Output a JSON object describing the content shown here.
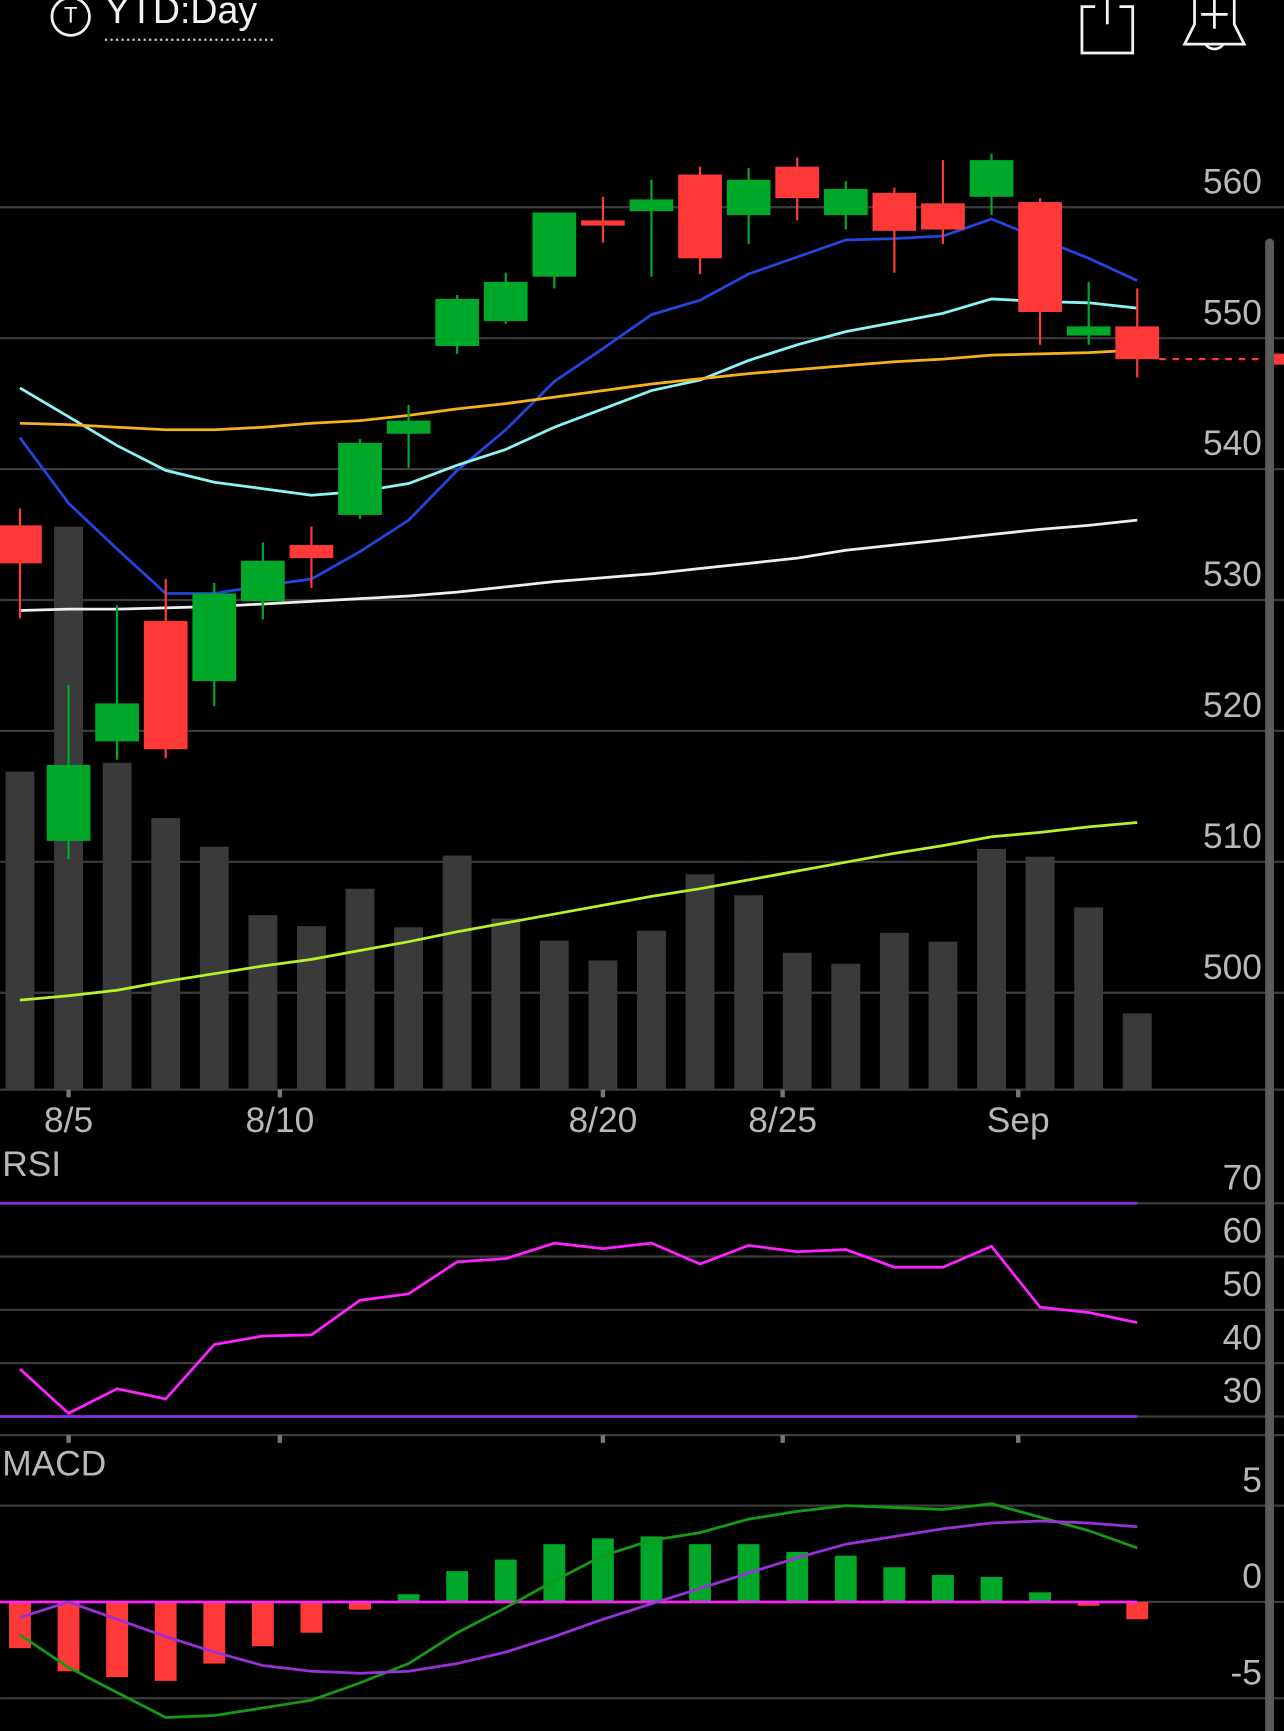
{
  "header": {
    "icon": "T",
    "title": "YTD:Day"
  },
  "chart_data": [
    {
      "type": "candlestick",
      "xlim": [
        -0.41,
        26.02
      ],
      "xticks": [
        {
          "value": 1,
          "label": "8/5"
        },
        {
          "value": 5.35,
          "label": "8/10"
        },
        {
          "value": 12,
          "label": "8/20"
        },
        {
          "value": 15.7,
          "label": "8/25"
        },
        {
          "value": 20.55,
          "label": "Sep"
        }
      ],
      "ylim": [
        492.6,
        567.4
      ],
      "yticks": [
        500,
        510,
        520,
        530,
        540,
        550,
        560
      ],
      "grid": true,
      "up_color": "#00a82a",
      "down_color": "#ff3838",
      "open": [
        535.7,
        511.6,
        519.2,
        528.4,
        523.8,
        529.9,
        534.2,
        536.5,
        542.7,
        549.4,
        551.3,
        554.7,
        559.0,
        559.7,
        562.5,
        559.4,
        563.1,
        559.4,
        561.1,
        560.3,
        560.8,
        560.4,
        550.2,
        550.9
      ],
      "high": [
        537.0,
        523.5,
        529.6,
        531.6,
        531.3,
        534.4,
        535.6,
        542.3,
        544.9,
        553.3,
        555.0,
        559.6,
        560.8,
        562.1,
        563.1,
        563.0,
        563.8,
        562.0,
        561.5,
        563.6,
        564.1,
        560.7,
        554.3,
        553.8
      ],
      "low": [
        528.6,
        510.2,
        517.8,
        517.9,
        521.9,
        528.5,
        530.9,
        536.2,
        540.1,
        548.8,
        551.1,
        553.8,
        557.3,
        554.7,
        554.9,
        557.2,
        559.0,
        558.3,
        555.0,
        557.2,
        559.4,
        549.5,
        549.5,
        547.0
      ],
      "close": [
        532.8,
        517.4,
        522.1,
        518.6,
        530.5,
        533.0,
        533.2,
        542.0,
        543.7,
        553.0,
        554.3,
        559.6,
        558.6,
        560.6,
        556.1,
        562.1,
        560.7,
        561.4,
        558.2,
        558.3,
        563.6,
        552.0,
        550.9,
        548.4
      ],
      "lines": [
        {
          "color": "#2345e0",
          "values": [
            542.4,
            537.4,
            533.9,
            530.5,
            530.5,
            531.1,
            531.6,
            533.7,
            536.1,
            539.9,
            543.0,
            546.7,
            549.2,
            551.8,
            552.9,
            554.9,
            556.2,
            557.5,
            557.6,
            557.8,
            559.1,
            557.6,
            556.1,
            554.4
          ]
        },
        {
          "color": "#8af5f5",
          "values": [
            546.2,
            544.0,
            541.8,
            539.9,
            539.0,
            538.5,
            538.0,
            538.3,
            538.9,
            540.3,
            541.5,
            543.2,
            544.6,
            546.0,
            546.8,
            548.3,
            549.5,
            550.5,
            551.2,
            551.9,
            553.0,
            552.8,
            552.7,
            552.3
          ]
        },
        {
          "color": "#f5b21c",
          "values": [
            543.5,
            543.4,
            543.2,
            543.0,
            543.0,
            543.2,
            543.5,
            543.7,
            544.1,
            544.6,
            545.0,
            545.5,
            546.0,
            546.5,
            546.9,
            547.3,
            547.6,
            547.9,
            548.2,
            548.4,
            548.7,
            548.8,
            548.9,
            549.1
          ]
        },
        {
          "color": "#eeeeee",
          "values": [
            529.2,
            529.3,
            529.3,
            529.4,
            529.5,
            529.7,
            529.9,
            530.1,
            530.3,
            530.6,
            531.0,
            531.4,
            531.7,
            532.0,
            532.4,
            532.8,
            533.2,
            533.8,
            534.2,
            534.6,
            535.0,
            535.4,
            535.7,
            536.1
          ]
        }
      ],
      "volume": [
        288,
        510,
        296,
        246,
        220,
        158,
        148,
        182,
        147,
        212,
        155,
        135,
        117,
        144,
        195,
        176,
        124,
        114,
        142,
        134,
        218,
        211,
        165,
        69
      ],
      "volume_lim": [
        0,
        600
      ],
      "volume_color": "#3a3a3a",
      "volume_ma": {
        "color": "#b6f22a",
        "values": [
          81,
          85,
          90,
          98,
          105,
          112,
          118,
          126,
          134,
          143,
          151,
          159,
          167,
          175,
          182,
          190,
          198,
          206,
          214,
          221,
          229,
          233,
          238,
          242
        ]
      }
    },
    {
      "type": "rsi",
      "title": "RSI",
      "xlim": [
        -0.41,
        26.02
      ],
      "ylim": [
        26.5,
        79.3
      ],
      "yticks": [
        30,
        40,
        50,
        60,
        70
      ],
      "grid": true,
      "ref_lines": [
        70,
        30
      ],
      "ref_color": "#8a2be2",
      "color": "#ff22ff",
      "values": [
        38.9,
        30.6,
        35.2,
        33.3,
        43.5,
        45.1,
        45.3,
        51.8,
        53.0,
        59.0,
        59.6,
        62.5,
        61.5,
        62.5,
        58.6,
        62.1,
        60.9,
        61.3,
        58.0,
        58.0,
        61.9,
        50.5,
        49.5,
        47.6
      ]
    },
    {
      "type": "macd",
      "title": "MACD",
      "xlim": [
        -0.41,
        26.02
      ],
      "ylim": [
        -6.7,
        7.8
      ],
      "yticks": [
        -5,
        0,
        5
      ],
      "grid": true,
      "zero_color": "#ff22ff",
      "up_color": "#00a82a",
      "down_color": "#ff3838",
      "histogram": [
        -2.4,
        -3.6,
        -3.9,
        -4.1,
        -3.2,
        -2.3,
        -1.6,
        -0.4,
        0.4,
        1.6,
        2.2,
        3.0,
        3.3,
        3.4,
        3.0,
        3.0,
        2.6,
        2.4,
        1.8,
        1.4,
        1.3,
        0.5,
        -0.2,
        -0.9
      ],
      "macd": {
        "color": "#159a15",
        "values": [
          -1.7,
          -3.4,
          -4.7,
          -6.0,
          -5.9,
          -5.5,
          -5.1,
          -4.2,
          -3.2,
          -1.6,
          -0.3,
          1.1,
          2.4,
          3.2,
          3.6,
          4.3,
          4.7,
          5.0,
          4.9,
          4.8,
          5.1,
          4.4,
          3.7,
          2.8
        ]
      },
      "signal": {
        "color": "#9b30d9",
        "values": [
          -0.8,
          0.0,
          -0.9,
          -1.8,
          -2.6,
          -3.3,
          -3.6,
          -3.7,
          -3.6,
          -3.2,
          -2.6,
          -1.8,
          -0.9,
          -0.1,
          0.7,
          1.5,
          2.3,
          3.0,
          3.4,
          3.8,
          4.1,
          4.2,
          4.1,
          3.9
        ]
      }
    }
  ]
}
